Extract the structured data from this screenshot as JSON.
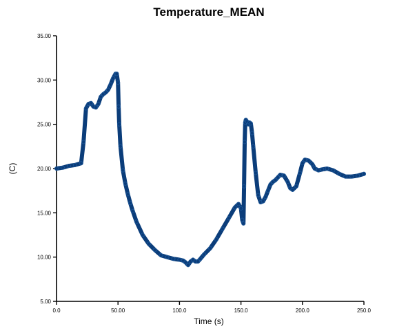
{
  "chart_data": {
    "type": "line",
    "title": "Temperature_MEAN",
    "xlabel": "Time (s)",
    "ylabel": "(C)",
    "xlim": [
      0,
      250
    ],
    "ylim": [
      5,
      35
    ],
    "x_ticks": [
      0,
      50,
      100,
      150,
      200,
      250
    ],
    "x_tick_labels": [
      "0.0",
      "50.00",
      "100.0",
      "150.0",
      "200.0",
      "250.0"
    ],
    "y_ticks": [
      5,
      10,
      15,
      20,
      25,
      30,
      35
    ],
    "y_tick_labels": [
      "5.00",
      "10.00",
      "15.00",
      "20.00",
      "25.00",
      "30.00",
      "35.00"
    ],
    "grid": false,
    "legend": "none",
    "line_color": "#0b3d7a",
    "series": [
      {
        "x": [
          0,
          5,
          10,
          15,
          20,
          22,
          24,
          26,
          28,
          30,
          32,
          34,
          36,
          38,
          40,
          42,
          44,
          46,
          48,
          49,
          50,
          50.5,
          51,
          52,
          54,
          56,
          58,
          60,
          62,
          65,
          70,
          75,
          80,
          85,
          90,
          95,
          100,
          103,
          105,
          107,
          109,
          111,
          113,
          115,
          117,
          120,
          125,
          130,
          135,
          140,
          145,
          148,
          150,
          151,
          152,
          152.5,
          153,
          153.5,
          154,
          155,
          156,
          157,
          158,
          159,
          160,
          162,
          164,
          166,
          168,
          170,
          172,
          174,
          176,
          178,
          180,
          182,
          185,
          188,
          190,
          192,
          195,
          198,
          200,
          202,
          205,
          208,
          210,
          213,
          216,
          220,
          225,
          230,
          235,
          240,
          245,
          250
        ],
        "y": [
          20.0,
          20.1,
          20.3,
          20.4,
          20.6,
          23.0,
          26.8,
          27.3,
          27.4,
          27.0,
          26.9,
          27.3,
          28.1,
          28.4,
          28.6,
          28.9,
          29.5,
          30.2,
          30.7,
          30.7,
          29.7,
          27.0,
          25.0,
          22.5,
          19.8,
          18.3,
          17.1,
          16.1,
          15.2,
          14.0,
          12.5,
          11.5,
          10.8,
          10.2,
          10.0,
          9.8,
          9.7,
          9.6,
          9.4,
          9.1,
          9.5,
          9.7,
          9.5,
          9.5,
          9.8,
          10.3,
          11.0,
          12.0,
          13.2,
          14.4,
          15.6,
          16.0,
          15.5,
          14.2,
          13.8,
          18.0,
          23.0,
          25.2,
          25.5,
          25.3,
          25.0,
          25.2,
          25.1,
          24.0,
          22.5,
          19.5,
          17.0,
          16.2,
          16.3,
          16.8,
          17.5,
          18.2,
          18.5,
          18.7,
          19.0,
          19.3,
          19.2,
          18.5,
          17.8,
          17.6,
          18.0,
          19.5,
          20.6,
          21.0,
          20.9,
          20.5,
          20.0,
          19.8,
          19.9,
          20.0,
          19.8,
          19.4,
          19.1,
          19.1,
          19.2,
          19.4
        ]
      }
    ]
  }
}
